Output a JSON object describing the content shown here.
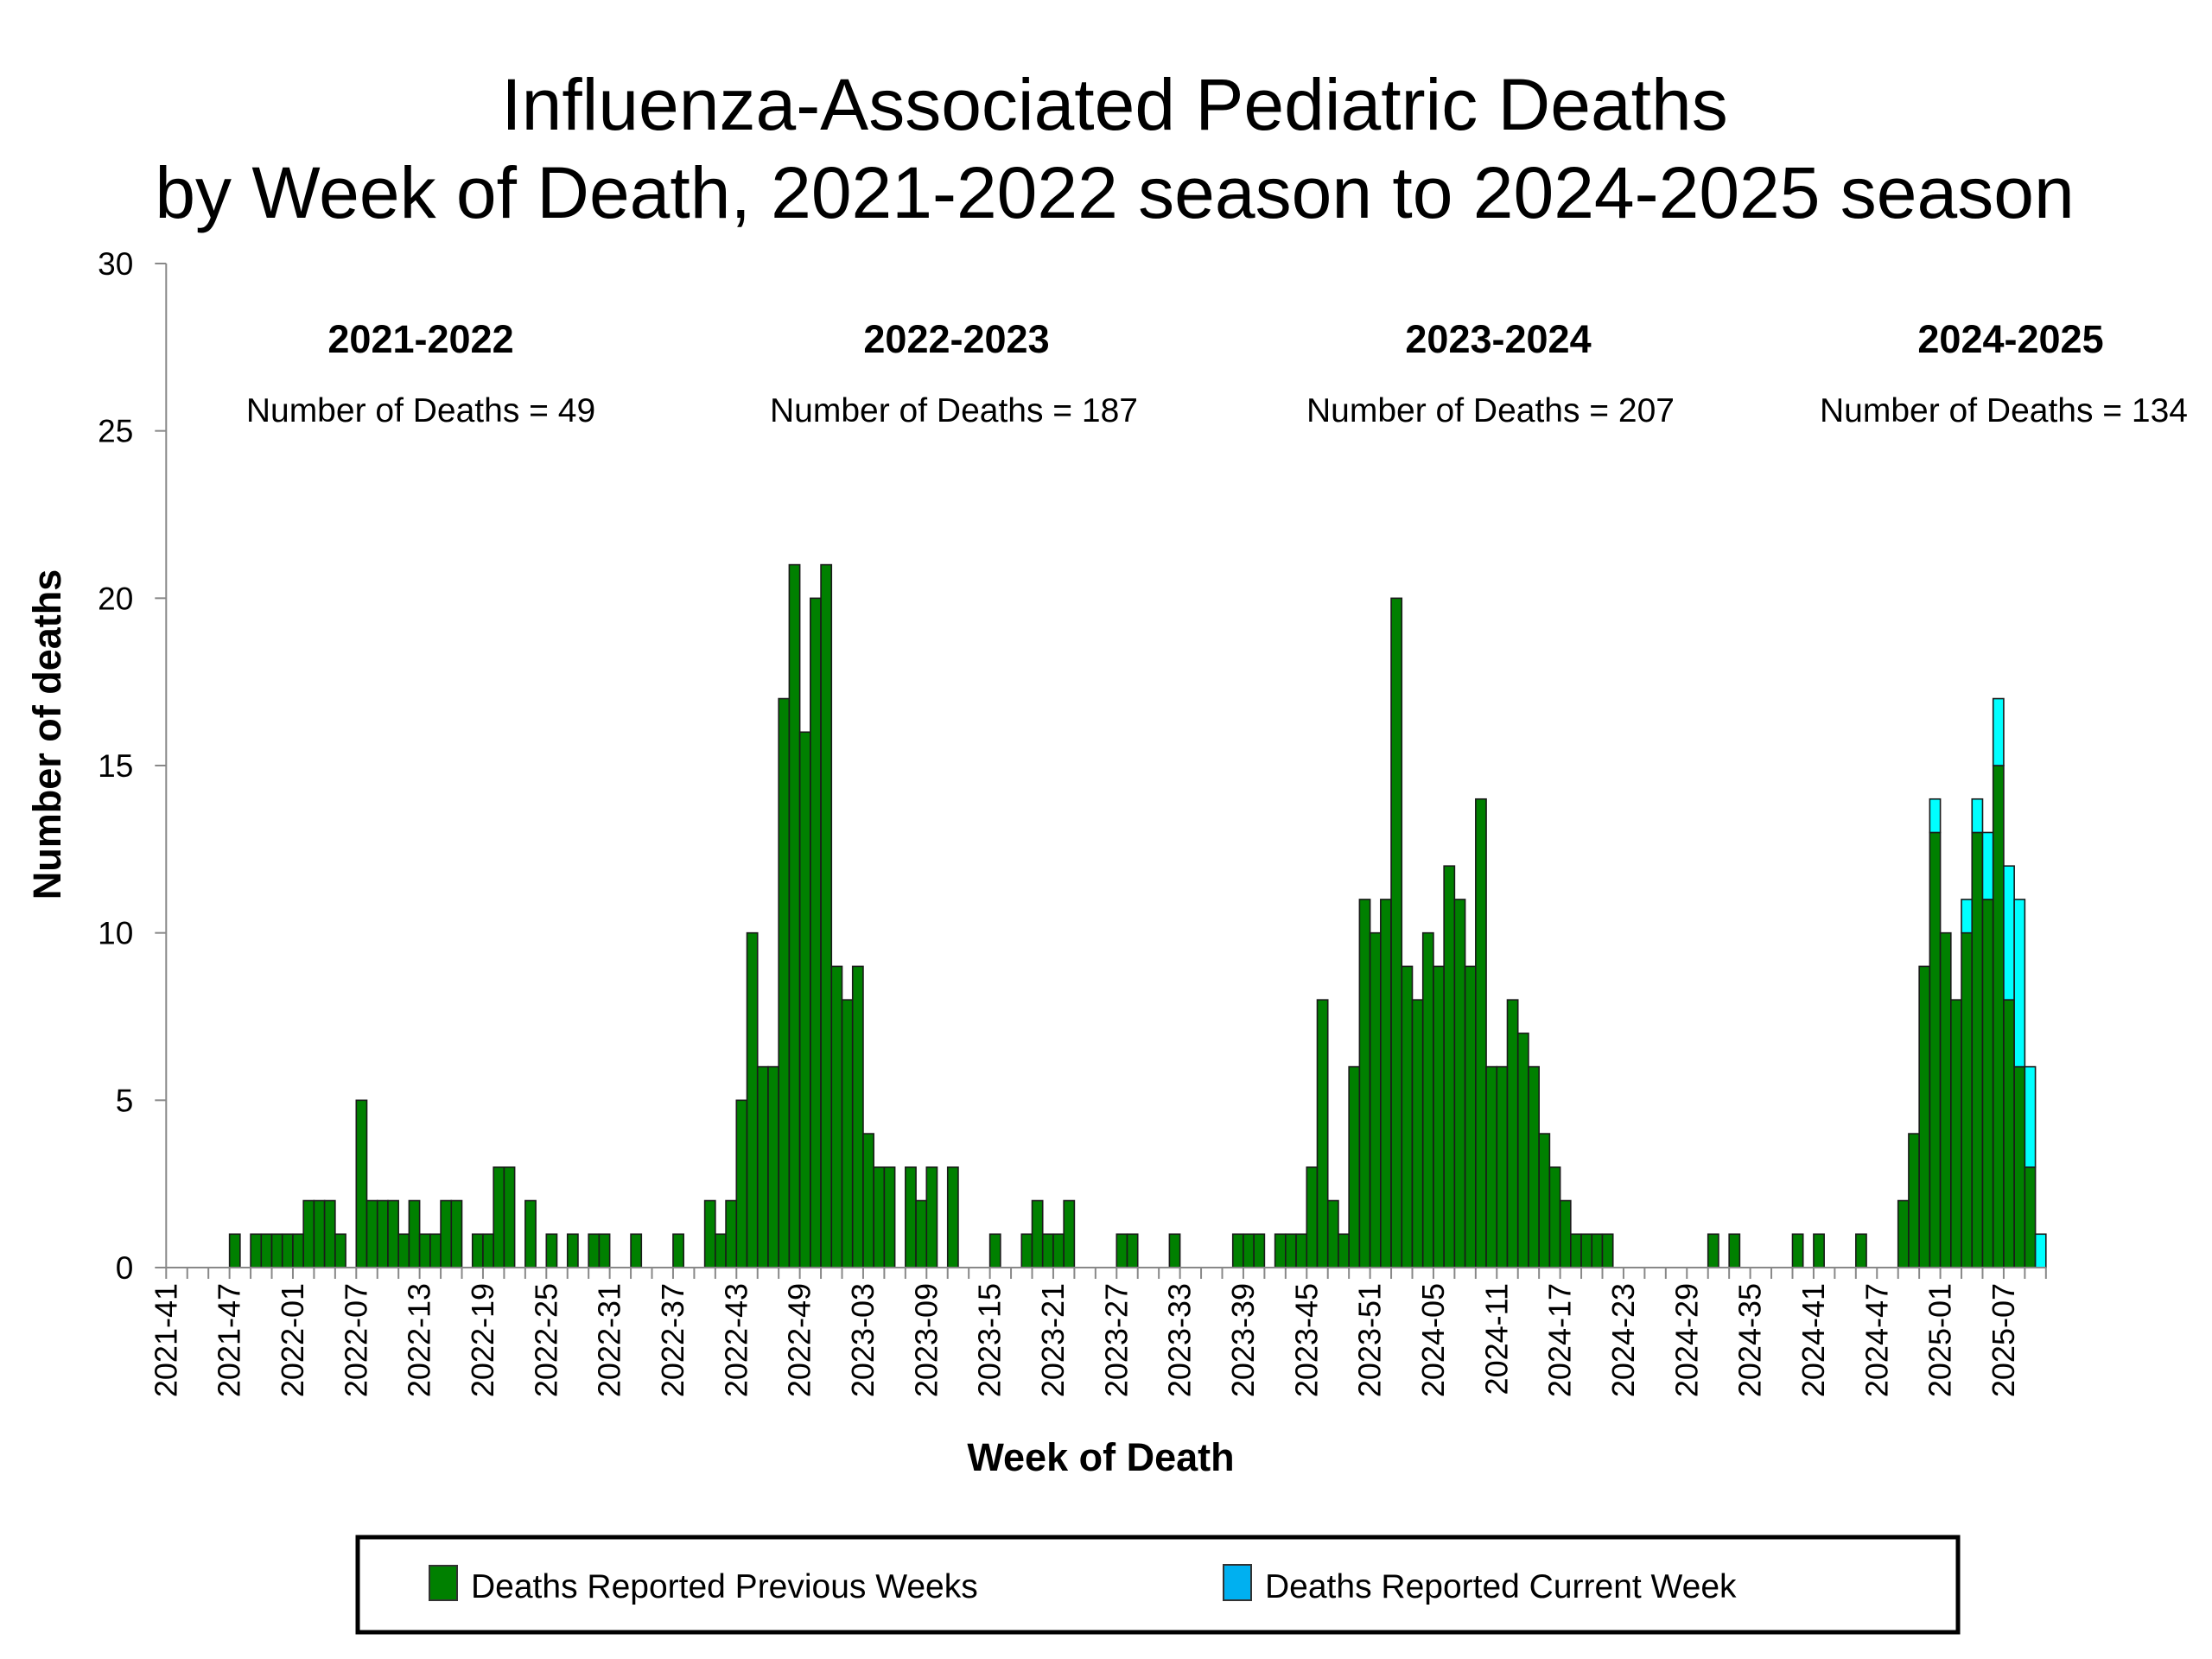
{
  "chart_data": {
    "type": "bar",
    "stacked": true,
    "title": [
      "Influenza-Associated Pediatric Deaths",
      "by Week of Death, 2021-2022 season to 2024-2025 season"
    ],
    "xlabel": "Week of Death",
    "ylabel": "Number of deaths",
    "ylim": [
      0,
      30
    ],
    "yticks": [
      0,
      5,
      10,
      15,
      20,
      25,
      30
    ],
    "grid": false,
    "legend_position": "bottom",
    "colors": {
      "previous": "#008000",
      "current": "#00FFFF",
      "legend_current": "#00B0F0",
      "bar_edge": "#1a1a1a"
    },
    "x_tick_labels": [
      "2021-41",
      "2021-47",
      "2022-01",
      "2022-07",
      "2022-13",
      "2022-19",
      "2022-25",
      "2022-31",
      "2022-37",
      "2022-43",
      "2022-49",
      "2023-03",
      "2023-09",
      "2023-15",
      "2023-21",
      "2023-27",
      "2023-33",
      "2023-39",
      "2023-45",
      "2023-51",
      "2024-05",
      "2024-11",
      "2024-17",
      "2024-23",
      "2024-29",
      "2024-35",
      "2024-41",
      "2024-47",
      "2025-01",
      "2025-07"
    ],
    "x": [
      "2021-41",
      "2021-42",
      "2021-43",
      "2021-44",
      "2021-45",
      "2021-46",
      "2021-47",
      "2021-48",
      "2021-49",
      "2021-50",
      "2021-51",
      "2021-52",
      "2022-01",
      "2022-02",
      "2022-03",
      "2022-04",
      "2022-05",
      "2022-06",
      "2022-07",
      "2022-08",
      "2022-09",
      "2022-10",
      "2022-11",
      "2022-12",
      "2022-13",
      "2022-14",
      "2022-15",
      "2022-16",
      "2022-17",
      "2022-18",
      "2022-19",
      "2022-20",
      "2022-21",
      "2022-22",
      "2022-23",
      "2022-24",
      "2022-25",
      "2022-26",
      "2022-27",
      "2022-28",
      "2022-29",
      "2022-30",
      "2022-31",
      "2022-32",
      "2022-33",
      "2022-34",
      "2022-35",
      "2022-36",
      "2022-37",
      "2022-38",
      "2022-39",
      "2022-40",
      "2022-41",
      "2022-42",
      "2022-43",
      "2022-44",
      "2022-45",
      "2022-46",
      "2022-47",
      "2022-48",
      "2022-49",
      "2022-50",
      "2022-51",
      "2022-52",
      "2023-01",
      "2023-02",
      "2023-03",
      "2023-04",
      "2023-05",
      "2023-06",
      "2023-07",
      "2023-08",
      "2023-09",
      "2023-10",
      "2023-11",
      "2023-12",
      "2023-13",
      "2023-14",
      "2023-15",
      "2023-16",
      "2023-17",
      "2023-18",
      "2023-19",
      "2023-20",
      "2023-21",
      "2023-22",
      "2023-23",
      "2023-24",
      "2023-25",
      "2023-26",
      "2023-27",
      "2023-28",
      "2023-29",
      "2023-30",
      "2023-31",
      "2023-32",
      "2023-33",
      "2023-34",
      "2023-35",
      "2023-36",
      "2023-37",
      "2023-38",
      "2023-39",
      "2023-40",
      "2023-41",
      "2023-42",
      "2023-43",
      "2023-44",
      "2023-45",
      "2023-46",
      "2023-47",
      "2023-48",
      "2023-49",
      "2023-50",
      "2023-51",
      "2023-52",
      "2024-01",
      "2024-02",
      "2024-03",
      "2024-04",
      "2024-05",
      "2024-06",
      "2024-07",
      "2024-08",
      "2024-09",
      "2024-10",
      "2024-11",
      "2024-12",
      "2024-13",
      "2024-14",
      "2024-15",
      "2024-16",
      "2024-17",
      "2024-18",
      "2024-19",
      "2024-20",
      "2024-21",
      "2024-22",
      "2024-23",
      "2024-24",
      "2024-25",
      "2024-26",
      "2024-27",
      "2024-28",
      "2024-29",
      "2024-30",
      "2024-31",
      "2024-32",
      "2024-33",
      "2024-34",
      "2024-35",
      "2024-36",
      "2024-37",
      "2024-38",
      "2024-39",
      "2024-40",
      "2024-41",
      "2024-42",
      "2024-43",
      "2024-44",
      "2024-45",
      "2024-46",
      "2024-47",
      "2024-48",
      "2024-49",
      "2024-50",
      "2024-51",
      "2024-52",
      "2025-01",
      "2025-02",
      "2025-03",
      "2025-04",
      "2025-05",
      "2025-06",
      "2025-07",
      "2025-08",
      "2025-09",
      "2025-10"
    ],
    "series": [
      {
        "name": "Deaths Reported Previous Weeks",
        "values": [
          0,
          0,
          0,
          0,
          0,
          0,
          1,
          0,
          1,
          1,
          1,
          1,
          1,
          2,
          2,
          2,
          1,
          0,
          5,
          2,
          2,
          2,
          1,
          2,
          1,
          1,
          2,
          2,
          0,
          1,
          1,
          3,
          3,
          0,
          2,
          0,
          1,
          0,
          1,
          0,
          1,
          1,
          0,
          0,
          1,
          0,
          0,
          0,
          1,
          0,
          0,
          2,
          1,
          2,
          5,
          10,
          6,
          6,
          17,
          21,
          16,
          20,
          21,
          9,
          8,
          9,
          4,
          3,
          3,
          0,
          3,
          2,
          3,
          0,
          3,
          0,
          0,
          0,
          1,
          0,
          0,
          1,
          2,
          1,
          1,
          2,
          0,
          0,
          0,
          0,
          1,
          1,
          0,
          0,
          0,
          1,
          0,
          0,
          0,
          0,
          0,
          1,
          1,
          1,
          0,
          1,
          1,
          1,
          3,
          8,
          2,
          1,
          6,
          11,
          10,
          11,
          20,
          9,
          8,
          10,
          9,
          12,
          11,
          9,
          14,
          6,
          6,
          8,
          7,
          6,
          4,
          3,
          2,
          1,
          1,
          1,
          1,
          0,
          0,
          0,
          0,
          0,
          0,
          0,
          0,
          0,
          1,
          0,
          1,
          0,
          0,
          0,
          0,
          0,
          1,
          0,
          1,
          0,
          0,
          0,
          1,
          0,
          0,
          0,
          2,
          4,
          9,
          13,
          10,
          8,
          10,
          13,
          11,
          15,
          8,
          6,
          3,
          0
        ]
      },
      {
        "name": "Deaths Reported Current Week",
        "values": [
          0,
          0,
          0,
          0,
          0,
          0,
          0,
          0,
          0,
          0,
          0,
          0,
          0,
          0,
          0,
          0,
          0,
          0,
          0,
          0,
          0,
          0,
          0,
          0,
          0,
          0,
          0,
          0,
          0,
          0,
          0,
          0,
          0,
          0,
          0,
          0,
          0,
          0,
          0,
          0,
          0,
          0,
          0,
          0,
          0,
          0,
          0,
          0,
          0,
          0,
          0,
          0,
          0,
          0,
          0,
          0,
          0,
          0,
          0,
          0,
          0,
          0,
          0,
          0,
          0,
          0,
          0,
          0,
          0,
          0,
          0,
          0,
          0,
          0,
          0,
          0,
          0,
          0,
          0,
          0,
          0,
          0,
          0,
          0,
          0,
          0,
          0,
          0,
          0,
          0,
          0,
          0,
          0,
          0,
          0,
          0,
          0,
          0,
          0,
          0,
          0,
          0,
          0,
          0,
          0,
          0,
          0,
          0,
          0,
          0,
          0,
          0,
          0,
          0,
          0,
          0,
          0,
          0,
          0,
          0,
          0,
          0,
          0,
          0,
          0,
          0,
          0,
          0,
          0,
          0,
          0,
          0,
          0,
          0,
          0,
          0,
          0,
          0,
          0,
          0,
          0,
          0,
          0,
          0,
          0,
          0,
          0,
          0,
          0,
          0,
          0,
          0,
          0,
          0,
          0,
          0,
          0,
          0,
          0,
          0,
          0,
          0,
          0,
          0,
          0,
          0,
          0,
          1,
          0,
          0,
          1,
          1,
          2,
          2,
          4,
          5,
          3,
          1
        ]
      }
    ],
    "annotations": [
      {
        "season": "2021-2022",
        "text": "Number of Deaths = 49"
      },
      {
        "season": "2022-2023",
        "text": "Number of Deaths = 187"
      },
      {
        "season": "2023-2024",
        "text": "Number of Deaths = 207"
      },
      {
        "season": "2024-2025",
        "text": "Number of Deaths = 134"
      }
    ]
  },
  "legend": {
    "items": [
      {
        "label": "Deaths Reported Previous Weeks",
        "color": "#008000"
      },
      {
        "label": "Deaths Reported Current Week",
        "color": "#00B0F0"
      }
    ]
  }
}
